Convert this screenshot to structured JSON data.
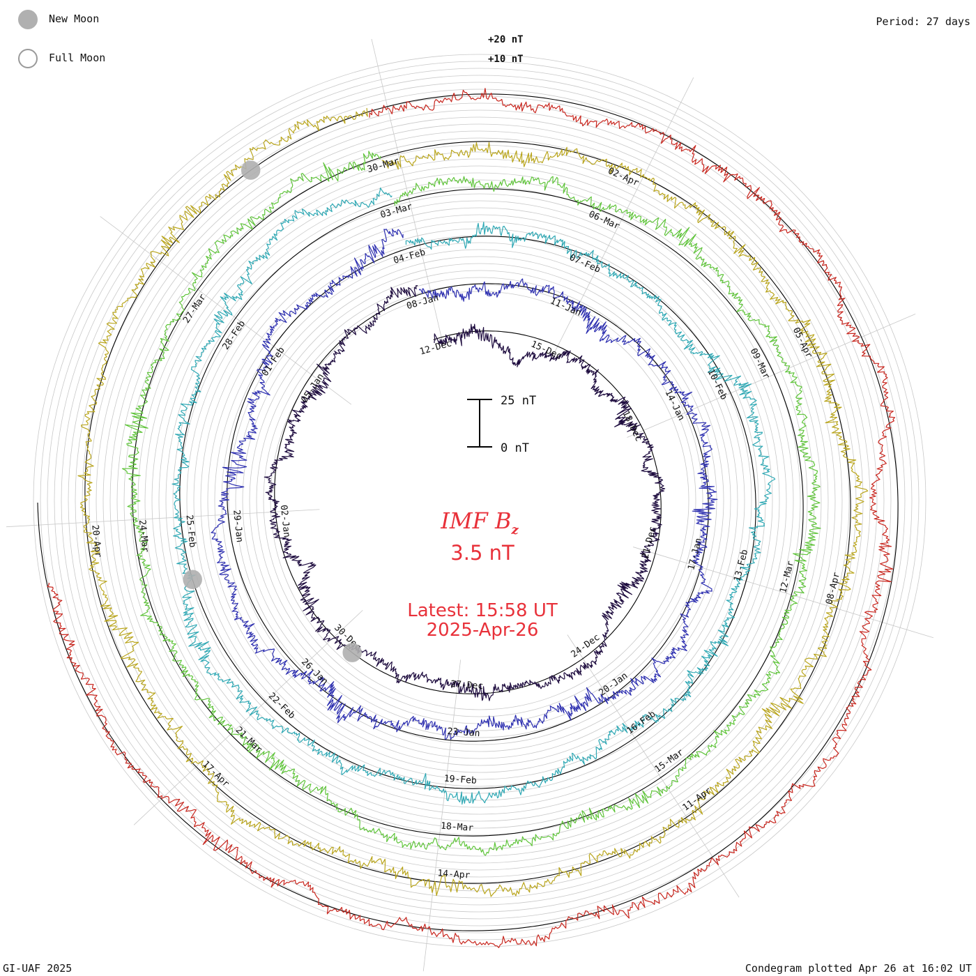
{
  "header": {
    "period": "Period: 27 days",
    "legend": [
      {
        "label": "New Moon",
        "fill": "#b0b0b0",
        "stroke": "#b0b0b0"
      },
      {
        "label": "Full Moon",
        "fill": "#ffffff",
        "stroke": "#9a9a9a"
      }
    ]
  },
  "footer": {
    "credit": "GI-UAF 2025",
    "plotted": "Condegram plotted Apr 26 at 16:02 UT"
  },
  "center": {
    "parameter": "IMF B",
    "parameter_sub": "z",
    "value": "3.5 nT",
    "latest_time": "Latest: 15:58 UT",
    "latest_date": "2025-Apr-26",
    "scale_top": "25 nT",
    "scale_bottom": "0 nT"
  },
  "ring_labels": [
    "+20 nT",
    "+10 nT"
  ],
  "colors": {
    "accent_text": "#e8313a",
    "grid": "#c8c8c8",
    "baseline": "#000000"
  },
  "chart_data": {
    "type": "line",
    "title": "IMF Bz",
    "period_days": 27,
    "scale_nt": [
      0,
      25
    ],
    "series": [
      {
        "ring": 1,
        "color": "#1d0b3e",
        "amplitude": 1.0,
        "labels": [
          {
            "text": "12-Dec",
            "day": 0
          },
          {
            "text": "15-Dec",
            "day": 3
          },
          {
            "text": "18-Dec",
            "day": 6
          },
          {
            "text": "21-Dec",
            "day": 9
          },
          {
            "text": "24-Dec",
            "day": 12
          },
          {
            "text": "27-Dec",
            "day": 15
          },
          {
            "text": "30-Dec",
            "day": 18
          },
          {
            "text": "02-Jan",
            "day": 21
          },
          {
            "text": "05-Jan",
            "day": 24
          }
        ]
      },
      {
        "ring": 2,
        "color": "#2d2fb0",
        "amplitude": 1.1,
        "labels": [
          {
            "text": "08-Jan",
            "day": 0
          },
          {
            "text": "11-Jan",
            "day": 3
          },
          {
            "text": "14-Jan",
            "day": 6
          },
          {
            "text": "17-Jan",
            "day": 9
          },
          {
            "text": "20-Jan",
            "day": 12
          },
          {
            "text": "23-Jan",
            "day": 15
          },
          {
            "text": "26-Jan",
            "day": 18
          },
          {
            "text": "29-Jan",
            "day": 21
          },
          {
            "text": "01-Feb",
            "day": 24
          }
        ]
      },
      {
        "ring": 3,
        "color": "#2ea8b4",
        "amplitude": 1.0,
        "labels": [
          {
            "text": "04-Feb",
            "day": 0
          },
          {
            "text": "07-Feb",
            "day": 3
          },
          {
            "text": "10-Feb",
            "day": 6
          },
          {
            "text": "13-Feb",
            "day": 9
          },
          {
            "text": "16-Feb",
            "day": 12
          },
          {
            "text": "19-Feb",
            "day": 15
          },
          {
            "text": "22-Feb",
            "day": 18
          },
          {
            "text": "25-Feb",
            "day": 21
          },
          {
            "text": "28-Feb",
            "day": 24
          }
        ]
      },
      {
        "ring": 4,
        "color": "#5fc43a",
        "amplitude": 1.0,
        "labels": [
          {
            "text": "03-Mar",
            "day": 0
          },
          {
            "text": "06-Mar",
            "day": 3
          },
          {
            "text": "09-Mar",
            "day": 6
          },
          {
            "text": "12-Mar",
            "day": 9
          },
          {
            "text": "15-Mar",
            "day": 12
          },
          {
            "text": "18-Mar",
            "day": 15
          },
          {
            "text": "21-Mar",
            "day": 18
          },
          {
            "text": "24-Mar",
            "day": 21
          },
          {
            "text": "27-Mar",
            "day": 24
          }
        ]
      },
      {
        "ring": 5,
        "color": "#b9a51c",
        "amplitude": 1.1,
        "labels": [
          {
            "text": "30-Mar",
            "day": 0
          },
          {
            "text": "02-Apr",
            "day": 3
          },
          {
            "text": "05-Apr",
            "day": 6
          },
          {
            "text": "08-Apr",
            "day": 9
          },
          {
            "text": "11-Apr",
            "day": 12
          },
          {
            "text": "14-Apr",
            "day": 15
          },
          {
            "text": "17-Apr",
            "day": 18
          },
          {
            "text": "20-Apr",
            "day": 21
          }
        ]
      },
      {
        "ring": 6,
        "color": "#c8261e",
        "amplitude": 1.0,
        "labels": []
      }
    ],
    "moons": [
      {
        "type": "new",
        "ring": 5,
        "day": 25.6
      },
      {
        "type": "new",
        "ring": 3,
        "day": 20.3
      },
      {
        "type": "new",
        "ring": 1,
        "day": 17.7
      }
    ]
  }
}
